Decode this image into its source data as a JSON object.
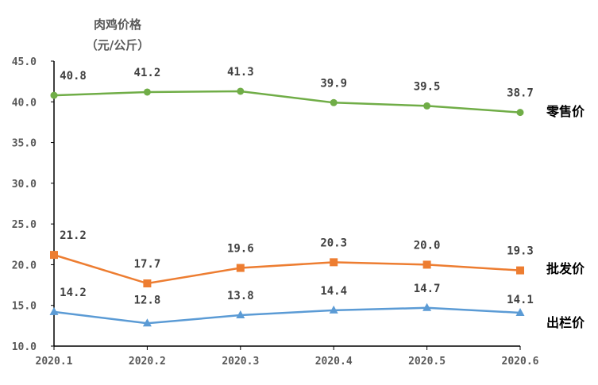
{
  "chart_data": {
    "type": "line",
    "title": "",
    "ylabel_line1": "肉鸡价格",
    "ylabel_line2": "（元/公斤）",
    "xlabel": "",
    "categories": [
      "2020.1",
      "2020.2",
      "2020.3",
      "2020.4",
      "2020.5",
      "2020.6"
    ],
    "ylim": [
      10,
      45
    ],
    "yticks": [
      "10.0",
      "15.0",
      "20.0",
      "25.0",
      "30.0",
      "35.0",
      "40.0",
      "45.0"
    ],
    "grid": false,
    "legend": "direct labels at right end of lines",
    "series": [
      {
        "name": "零售价",
        "color": "#70AD47",
        "marker": "circle",
        "values": [
          40.8,
          41.2,
          41.3,
          39.9,
          39.5,
          38.7
        ],
        "labels": [
          "40.8",
          "41.2",
          "41.3",
          "39.9",
          "39.5",
          "38.7"
        ]
      },
      {
        "name": "批发价",
        "color": "#ED7D31",
        "marker": "square",
        "values": [
          21.2,
          17.7,
          19.6,
          20.3,
          20.0,
          19.3
        ],
        "labels": [
          "21.2",
          "17.7",
          "19.6",
          "20.3",
          "20.0",
          "19.3"
        ]
      },
      {
        "name": "出栏价",
        "color": "#5B9BD5",
        "marker": "triangle",
        "values": [
          14.2,
          12.8,
          13.8,
          14.4,
          14.7,
          14.1
        ],
        "labels": [
          "14.2",
          "12.8",
          "13.8",
          "14.4",
          "14.7",
          "14.1"
        ]
      }
    ]
  }
}
